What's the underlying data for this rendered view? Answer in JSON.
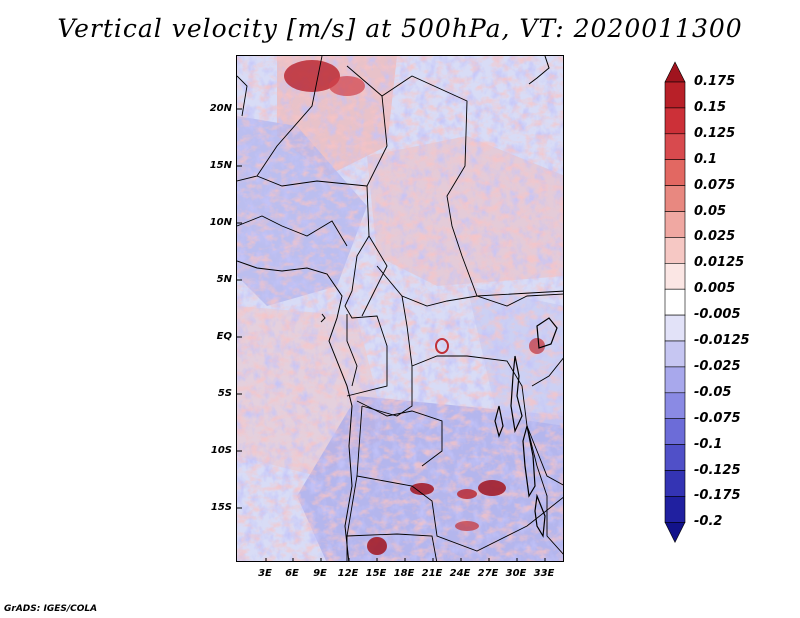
{
  "title": "Vertical velocity [m/s] at 500hPa, VT: 2020011300",
  "credit": "GrADS: IGES/COLA",
  "lat_labels": [
    "20N",
    "15N",
    "10N",
    "5N",
    "EQ",
    "5S",
    "10S",
    "15S"
  ],
  "lon_labels": [
    "3E",
    "6E",
    "9E",
    "12E",
    "15E",
    "18E",
    "21E",
    "24E",
    "27E",
    "30E",
    "33E"
  ],
  "colorbar": {
    "labels": [
      "0.175",
      "0.15",
      "0.125",
      "0.1",
      "0.075",
      "0.05",
      "0.025",
      "0.0125",
      "0.005",
      "-0.005",
      "-0.0125",
      "-0.025",
      "-0.05",
      "-0.075",
      "-0.1",
      "-0.125",
      "-0.175",
      "-0.2"
    ],
    "colors": [
      "#a0141e",
      "#b82028",
      "#cc3038",
      "#d84a4e",
      "#e26862",
      "#e88880",
      "#f0a8a2",
      "#f6c8c4",
      "#fbe6e4",
      "#ffffff",
      "#e2e2f8",
      "#c6c6f2",
      "#a8a8ec",
      "#8a8ae4",
      "#6c6cd8",
      "#5050c8",
      "#3434b4",
      "#2020a0",
      "#12128a"
    ]
  }
}
